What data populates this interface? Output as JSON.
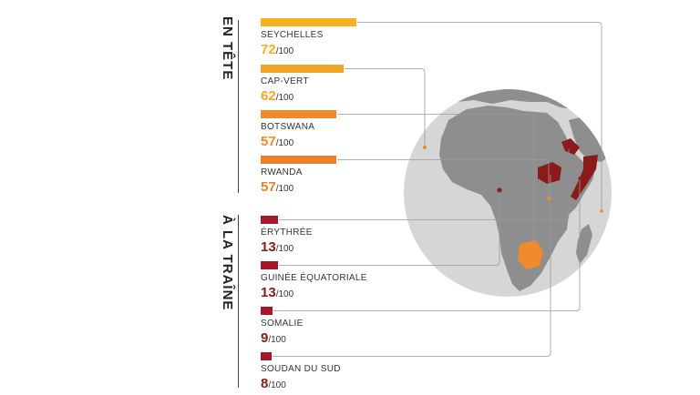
{
  "sections": {
    "top": "EN TÊTE",
    "bottom": "À LA TRAÎNE"
  },
  "colors": {
    "top_gradient": [
      "#f5b120",
      "#f4a526",
      "#f08a2a",
      "#ee7f2a"
    ],
    "bottom": "#a5182a",
    "globe": "#d6d6d6",
    "land": "#8e8e8e",
    "highlight_top": "#f08a2a",
    "highlight_bottom": "#8b1a1a",
    "connector": "#9a9a9a"
  },
  "chart_data": {
    "type": "bar",
    "orientation": "horizontal",
    "categories": [
      "SEYCHELLES",
      "CAP-VERT",
      "BOTSWANA",
      "RWANDA",
      "ÉRYTHRÉE",
      "GUINÉE ÉQUATORIALE",
      "SOMALIE",
      "SOUDAN DU SUD"
    ],
    "values": [
      72,
      62,
      57,
      57,
      13,
      13,
      9,
      8
    ],
    "value_suffix": "/100",
    "groups": [
      "EN TÊTE",
      "EN TÊTE",
      "EN TÊTE",
      "EN TÊTE",
      "À LA TRAÎNE",
      "À LA TRAÎNE",
      "À LA TRAÎNE",
      "À LA TRAÎNE"
    ],
    "xlim": [
      0,
      100
    ],
    "map": "Africa globe with highlighted countries"
  },
  "rows": [
    {
      "name": "SEYCHELLES",
      "value": "72",
      "suffix": "/100"
    },
    {
      "name": "CAP-VERT",
      "value": "62",
      "suffix": "/100"
    },
    {
      "name": "BOTSWANA",
      "value": "57",
      "suffix": "/100"
    },
    {
      "name": "RWANDA",
      "value": "57",
      "suffix": "/100"
    },
    {
      "name": "ÉRYTHRÉE",
      "value": "13",
      "suffix": "/100"
    },
    {
      "name": "GUINÉE ÉQUATORIALE",
      "value": "13",
      "suffix": "/100"
    },
    {
      "name": "SOMALIE",
      "value": "9",
      "suffix": "/100"
    },
    {
      "name": "SOUDAN DU SUD",
      "value": "8",
      "suffix": "/100"
    }
  ]
}
